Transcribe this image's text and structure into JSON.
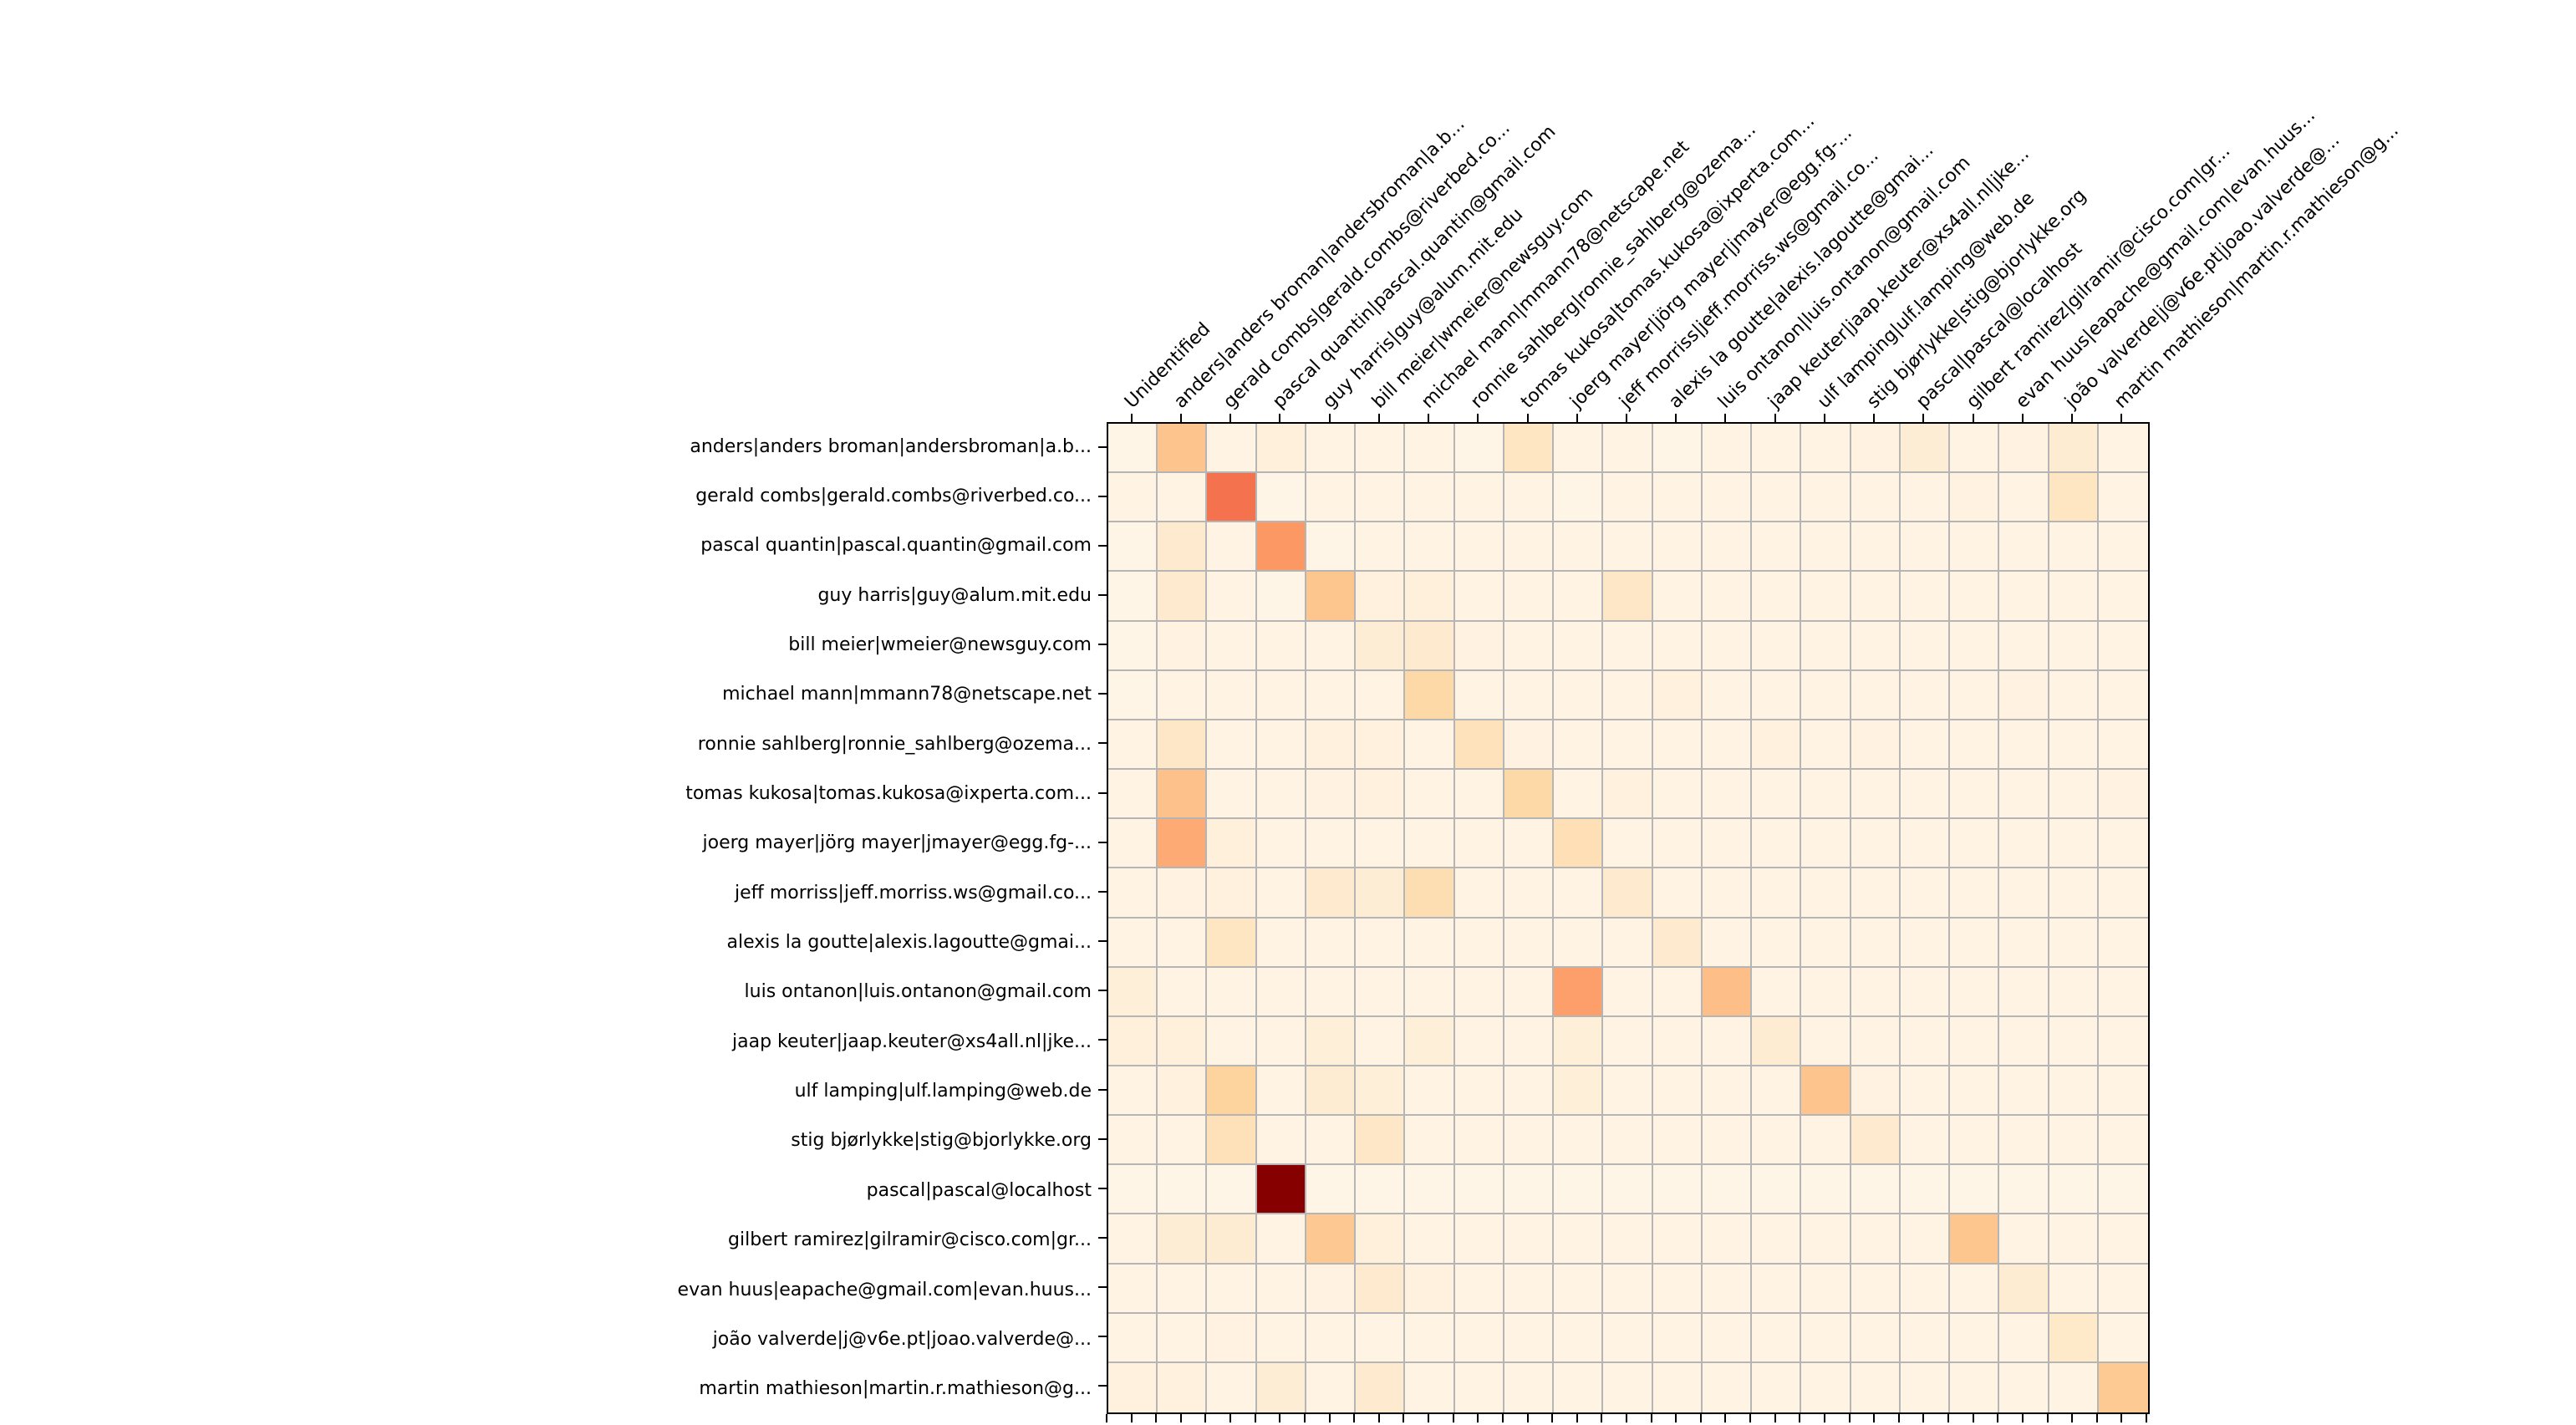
{
  "chart_data": {
    "type": "heatmap",
    "title": "",
    "xlabel": "",
    "ylabel": "",
    "legend": "none",
    "grid": true,
    "gridline_color": "#b5b5b5",
    "border_color": "#000000",
    "background_color": "#ffffff",
    "text_color": "#000000",
    "colormap": {
      "name": "OrRd",
      "stops": [
        "#fff7ec",
        "#fee8c8",
        "#fdd49e",
        "#fdbb84",
        "#fc8d59",
        "#ef6548",
        "#d7301f",
        "#b30000",
        "#7f0000"
      ]
    },
    "value_scale": "relative intensity 0-100 (100 = darkest cell)",
    "columns": [
      "Unidentified",
      "anders|anders broman|andersbroman|a.b...",
      "gerald combs|gerald.combs@riverbed.co...",
      "pascal quantin|pascal.quantin@gmail.com",
      "guy harris|guy@alum.mit.edu",
      "bill meier|wmeier@newsguy.com",
      "michael mann|mmann78@netscape.net",
      "ronnie sahlberg|ronnie_sahlberg@ozema...",
      "tomas kukosa|tomas.kukosa@ixperta.com...",
      "joerg mayer|jörg mayer|jmayer@egg.fg-...",
      "jeff morriss|jeff.morriss.ws@gmail.co...",
      "alexis la goutte|alexis.lagoutte@gmai...",
      "luis ontanon|luis.ontanon@gmail.com",
      "jaap keuter|jaap.keuter@xs4all.nl|jke...",
      "ulf lamping|ulf.lamping@web.de",
      "stig bjørlykke|stig@bjorlykke.org",
      "pascal|pascal@localhost",
      "gilbert ramirez|gilramir@cisco.com|gr...",
      "evan huus|eapache@gmail.com|evan.huus...",
      "joão valverde|j@v6e.pt|joao.valverde@...",
      "martin mathieson|martin.r.mathieson@g..."
    ],
    "rows": [
      "anders|anders broman|andersbroman|a.b...",
      "gerald combs|gerald.combs@riverbed.co...",
      "pascal quantin|pascal.quantin@gmail.com",
      "guy harris|guy@alum.mit.edu",
      "bill meier|wmeier@newsguy.com",
      "michael mann|mmann78@netscape.net",
      "ronnie sahlberg|ronnie_sahlberg@ozema...",
      "tomas kukosa|tomas.kukosa@ixperta.com...",
      "joerg mayer|jörg mayer|jmayer@egg.fg-...",
      "jeff morriss|jeff.morriss.ws@gmail.co...",
      "alexis la goutte|alexis.lagoutte@gmai...",
      "luis ontanon|luis.ontanon@gmail.com",
      "jaap keuter|jaap.keuter@xs4all.nl|jke...",
      "ulf lamping|ulf.lamping@web.de",
      "stig bjørlykke|stig@bjorlykke.org",
      "pascal|pascal@localhost",
      "gilbert ramirez|gilramir@cisco.com|gr...",
      "evan huus|eapache@gmail.com|evan.huus...",
      "joão valverde|j@v6e.pt|joao.valverde@...",
      "martin mathieson|martin.r.mathieson@g..."
    ],
    "values": [
      [
        2,
        33,
        3,
        6,
        3,
        3,
        3,
        2,
        14,
        3,
        3,
        2,
        3,
        3,
        3,
        4,
        8,
        3,
        4,
        9,
        3
      ],
      [
        3,
        3,
        58,
        2,
        3,
        3,
        3,
        3,
        3,
        2,
        3,
        3,
        3,
        3,
        3,
        3,
        3,
        4,
        3,
        14,
        3
      ],
      [
        2,
        10,
        3,
        47,
        2,
        3,
        3,
        3,
        3,
        3,
        3,
        3,
        3,
        3,
        3,
        3,
        3,
        3,
        3,
        3,
        3
      ],
      [
        2,
        10,
        3,
        2,
        32,
        5,
        6,
        3,
        3,
        3,
        13,
        3,
        3,
        3,
        3,
        3,
        3,
        3,
        3,
        3,
        3
      ],
      [
        2,
        4,
        3,
        3,
        3,
        8,
        10,
        4,
        3,
        3,
        3,
        3,
        3,
        3,
        3,
        3,
        3,
        3,
        3,
        3,
        3
      ],
      [
        2,
        3,
        3,
        3,
        3,
        3,
        22,
        3,
        3,
        3,
        3,
        5,
        3,
        3,
        3,
        3,
        3,
        3,
        4,
        3,
        3
      ],
      [
        3,
        13,
        3,
        3,
        5,
        5,
        3,
        16,
        4,
        3,
        3,
        3,
        3,
        5,
        3,
        4,
        3,
        3,
        3,
        3,
        3
      ],
      [
        3,
        34,
        3,
        3,
        4,
        5,
        3,
        3,
        22,
        3,
        5,
        3,
        3,
        3,
        3,
        3,
        3,
        3,
        3,
        3,
        4
      ],
      [
        3,
        42,
        6,
        3,
        3,
        3,
        3,
        3,
        3,
        18,
        3,
        3,
        3,
        3,
        3,
        3,
        3,
        3,
        3,
        3,
        3
      ],
      [
        3,
        4,
        5,
        3,
        10,
        8,
        19,
        3,
        3,
        3,
        10,
        3,
        3,
        3,
        3,
        3,
        3,
        3,
        3,
        3,
        3
      ],
      [
        3,
        3,
        14,
        3,
        3,
        3,
        3,
        3,
        3,
        3,
        3,
        10,
        3,
        3,
        3,
        3,
        3,
        3,
        3,
        3,
        3
      ],
      [
        7,
        3,
        3,
        3,
        3,
        3,
        3,
        3,
        3,
        45,
        3,
        3,
        36,
        3,
        3,
        3,
        3,
        3,
        3,
        3,
        3
      ],
      [
        6,
        6,
        3,
        3,
        7,
        3,
        7,
        3,
        3,
        7,
        3,
        3,
        3,
        9,
        3,
        3,
        3,
        3,
        3,
        3,
        3
      ],
      [
        3,
        5,
        25,
        3,
        9,
        7,
        3,
        3,
        3,
        7,
        3,
        3,
        3,
        3,
        33,
        4,
        3,
        3,
        3,
        3,
        3
      ],
      [
        3,
        3,
        17,
        3,
        3,
        13,
        3,
        3,
        3,
        3,
        3,
        3,
        3,
        3,
        3,
        10,
        3,
        3,
        3,
        3,
        3
      ],
      [
        2,
        2,
        2,
        98,
        2,
        2,
        2,
        2,
        2,
        2,
        2,
        2,
        2,
        2,
        2,
        2,
        2,
        2,
        2,
        2,
        2
      ],
      [
        3,
        8,
        9,
        3,
        31,
        6,
        3,
        3,
        3,
        3,
        3,
        3,
        3,
        3,
        3,
        3,
        3,
        32,
        3,
        3,
        3
      ],
      [
        3,
        3,
        3,
        3,
        4,
        10,
        5,
        3,
        3,
        3,
        3,
        3,
        3,
        3,
        3,
        3,
        3,
        3,
        9,
        3,
        3
      ],
      [
        3,
        3,
        4,
        3,
        3,
        3,
        3,
        3,
        3,
        3,
        3,
        3,
        3,
        3,
        3,
        3,
        3,
        3,
        3,
        12,
        3
      ],
      [
        5,
        5,
        3,
        8,
        3,
        10,
        3,
        3,
        3,
        3,
        3,
        3,
        3,
        3,
        3,
        3,
        3,
        3,
        3,
        3,
        30
      ]
    ],
    "axes": {
      "x_tick_sides": [
        "top",
        "bottom"
      ],
      "y_tick_sides": [
        "left"
      ],
      "x_label_rotation_deg": 45,
      "x_label_position": "top"
    }
  }
}
